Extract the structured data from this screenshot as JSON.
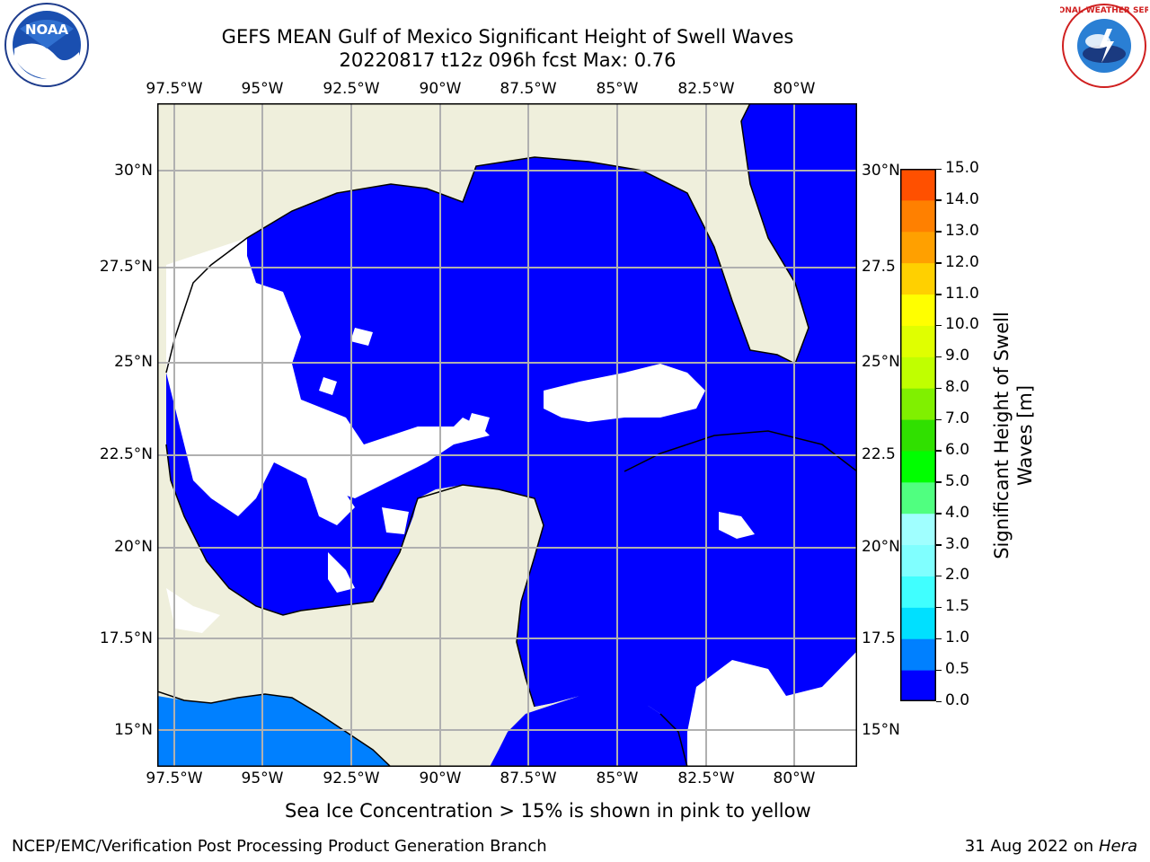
{
  "header": {
    "title_line1": "GEFS MEAN Gulf of Mexico Significant Height of Swell Waves",
    "title_line2": "20220817 t12z 096h fcst   Max: 0.76"
  },
  "logos": {
    "left": {
      "name": "noaa-logo",
      "text": "NOAA"
    },
    "right": {
      "name": "nws-logo",
      "text": "NATIONAL WEATHER SERVICE"
    }
  },
  "map": {
    "lon_ticks": [
      "97.5°W",
      "95°W",
      "92.5°W",
      "90°W",
      "87.5°W",
      "85°W",
      "82.5°W",
      "80°W"
    ],
    "lat_ticks_left": [
      "30°N",
      "27.5°N",
      "25°N",
      "22.5°N",
      "20°N",
      "17.5°N",
      "15°N"
    ],
    "lat_ticks_right": [
      "30°N",
      "27.5",
      "25°N",
      "22.5",
      "20°N",
      "17.5",
      "15°N"
    ],
    "extent": {
      "lon_min": -98,
      "lon_max": -78.2,
      "lat_min": 14,
      "lat_max": 31.6
    },
    "colors": {
      "land": "#efefdc",
      "water_low": "#0000ff",
      "water_mid": "#0080ff",
      "no_data": "#ffffff",
      "grid": "#b0b0b0",
      "coast": "#000000"
    }
  },
  "colorbar": {
    "label": "Significant Height of Swell Waves [m]",
    "label_line1": "Significant Height of Swell",
    "label_line2": "Waves [m]",
    "ticks": [
      "15.0",
      "14.0",
      "13.0",
      "12.0",
      "11.0",
      "10.0",
      "9.0",
      "8.0",
      "7.0",
      "6.0",
      "5.0",
      "4.0",
      "3.0",
      "2.0",
      "1.5",
      "1.0",
      "0.5",
      "0.0"
    ],
    "colors_bottom_to_top": [
      "#0000ff",
      "#0080ff",
      "#00e0ff",
      "#40ffff",
      "#80ffff",
      "#a0ffff",
      "#50ff80",
      "#00ff00",
      "#30e000",
      "#80f000",
      "#c0ff00",
      "#e0ff00",
      "#ffff00",
      "#ffd000",
      "#ffa000",
      "#ff8000",
      "#ff5000",
      "#ff2000",
      "#ff0000"
    ]
  },
  "note": "Sea Ice Concentration > 15% is shown in pink to yellow",
  "footer": {
    "left": "NCEP/EMC/Verification Post Processing Product Generation Branch",
    "right_date": "31 Aug 2022 on",
    "right_host": "Hera"
  }
}
